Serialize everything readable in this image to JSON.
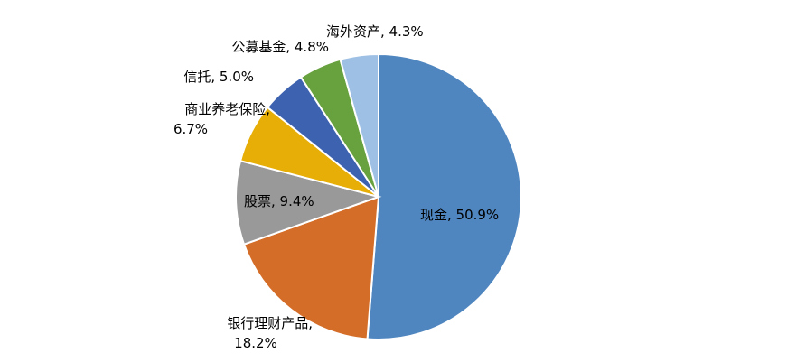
{
  "chart_data": {
    "type": "pie",
    "title": "",
    "slices": [
      {
        "label": "现金",
        "value": 50.9,
        "value_text": "50.9%",
        "color": "#4f86c0"
      },
      {
        "label": "银行理财产品",
        "value": 18.2,
        "value_text": "18.2%",
        "color": "#d46d27"
      },
      {
        "label": "股票",
        "value": 9.4,
        "value_text": "9.4%",
        "color": "#999999"
      },
      {
        "label": "商业养老保险",
        "value": 6.7,
        "value_text": "6.7%",
        "color": "#e6ae06"
      },
      {
        "label": "信托",
        "value": 5.0,
        "value_text": "5.0%",
        "color": "#3d62b0"
      },
      {
        "label": "公募基金",
        "value": 4.8,
        "value_text": "4.8%",
        "color": "#67a23f"
      },
      {
        "label": "海外资产",
        "value": 4.3,
        "value_text": "4.3%",
        "color": "#9dc0e4"
      }
    ],
    "start_angle": "12 o'clock",
    "direction": "clockwise",
    "legend": "none"
  }
}
